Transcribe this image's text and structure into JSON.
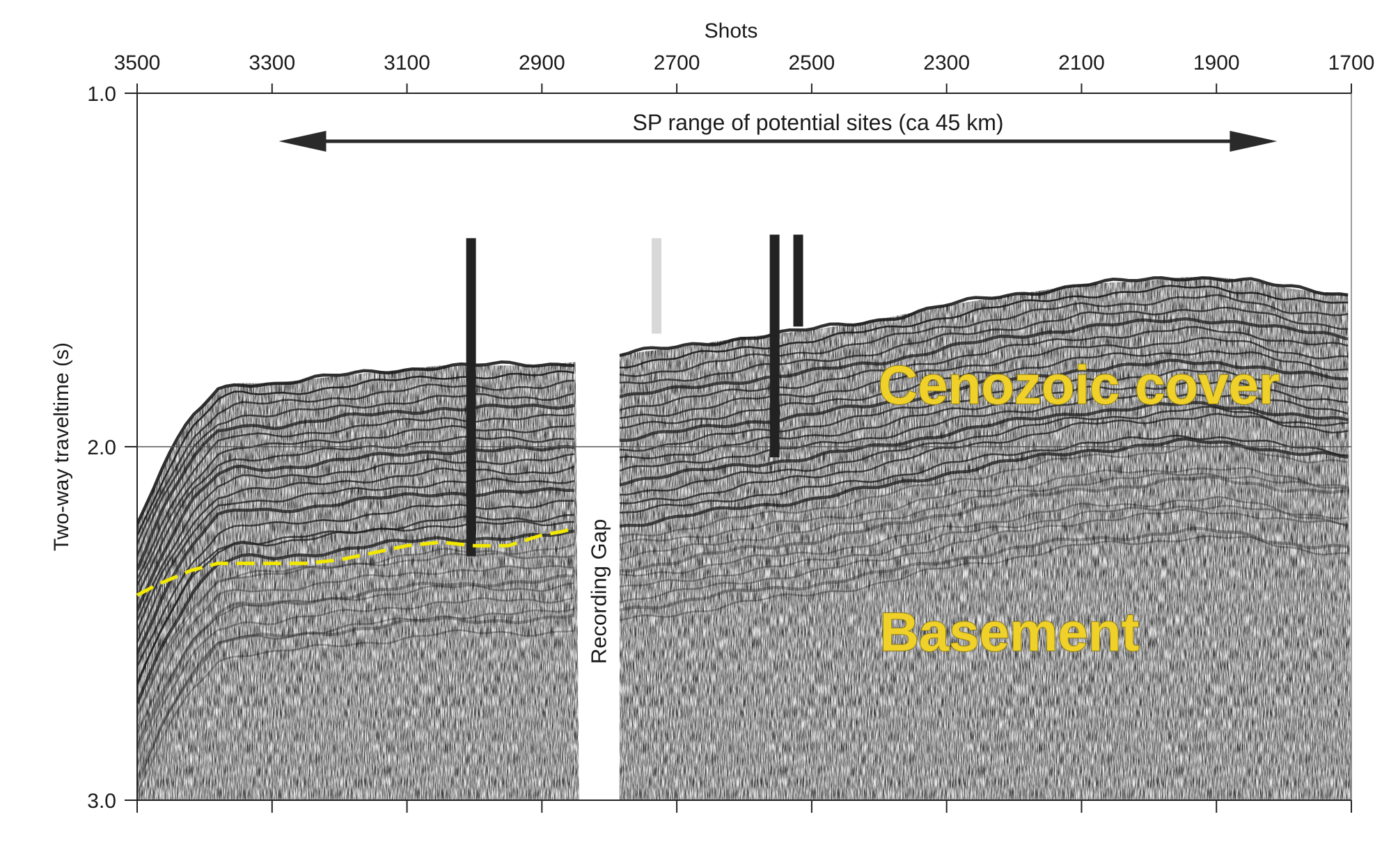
{
  "chart_data": {
    "type": "seismic-section",
    "top_axis": {
      "title": "Shots",
      "ticks": [
        "3500",
        "3300",
        "3100",
        "2900",
        "2700",
        "2500",
        "2300",
        "2100",
        "1900",
        "1700"
      ],
      "range": [
        3500,
        1700
      ]
    },
    "left_axis": {
      "title": "Two-way traveltime (s)",
      "ticks": [
        "1.0",
        "2.0",
        "3.0"
      ],
      "range": [
        1.0,
        3.0
      ]
    },
    "range_arrow": {
      "label": "SP range of potential sites (ca 45 km)",
      "from_shot": 3290,
      "to_shot": 1810
    },
    "recording_gap": {
      "label": "Recording Gap",
      "from_shot": 2845,
      "to_shot": 2785
    },
    "units": [
      {
        "label": "Cenozoic cover"
      },
      {
        "label": "Basement"
      }
    ],
    "boreholes": [
      {
        "shot": 3005,
        "top_s": 1.41,
        "bottom_s": 2.31,
        "color": "#222222"
      },
      {
        "shot": 2730,
        "top_s": 1.41,
        "bottom_s": 1.68,
        "color": "#d8d8d8"
      },
      {
        "shot": 2555,
        "top_s": 1.4,
        "bottom_s": 2.03,
        "color": "#222222"
      },
      {
        "shot": 2520,
        "top_s": 1.4,
        "bottom_s": 1.66,
        "color": "#222222"
      }
    ],
    "seafloor": {
      "x": [
        3500,
        3460,
        3420,
        3380,
        3350,
        3300,
        3200,
        3100,
        3050,
        3000,
        2900,
        2850,
        2790,
        2700,
        2600,
        2500,
        2400,
        2300,
        2200,
        2100,
        2000,
        1950,
        1900,
        1850,
        1800,
        1760,
        1700
      ],
      "y": [
        2.22,
        2.05,
        1.92,
        1.84,
        1.82,
        1.82,
        1.8,
        1.78,
        1.77,
        1.77,
        1.77,
        1.76,
        1.74,
        1.72,
        1.69,
        1.67,
        1.64,
        1.6,
        1.57,
        1.54,
        1.53,
        1.52,
        1.52,
        1.53,
        1.55,
        1.56,
        1.57
      ]
    },
    "basement_top": {
      "color": "#f2e800",
      "x": [
        3500,
        3470,
        3420,
        3380,
        3350,
        3300,
        3250,
        3200,
        3150,
        3100,
        3050,
        3000,
        2950,
        2900,
        2870,
        2850
      ],
      "y": [
        2.42,
        2.39,
        2.35,
        2.33,
        2.33,
        2.33,
        2.33,
        2.32,
        2.3,
        2.28,
        2.27,
        2.28,
        2.28,
        2.25,
        2.24,
        2.23
      ]
    }
  }
}
